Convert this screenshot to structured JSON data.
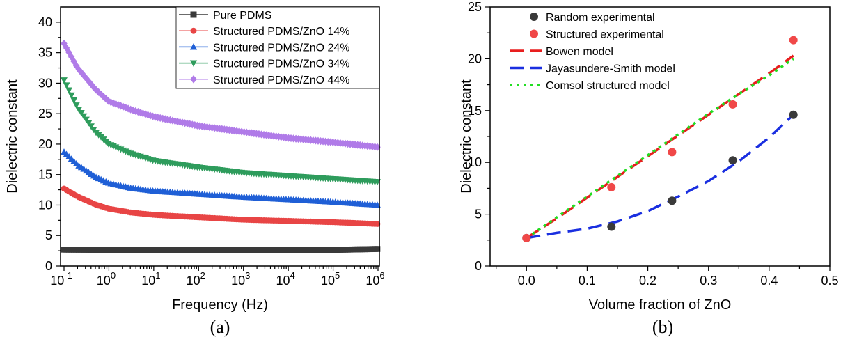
{
  "chart_data": [
    {
      "id": "a",
      "type": "line",
      "panel_label": "(a)",
      "xlabel": "Frequency (Hz)",
      "ylabel": "Dielectric constant",
      "xscale": "log",
      "xlim": [
        0.1,
        1000000
      ],
      "ylim": [
        0,
        42.5
      ],
      "xticks": [
        {
          "value": 0.1,
          "base": "10",
          "exp": "-1"
        },
        {
          "value": 1,
          "base": "10",
          "exp": "0"
        },
        {
          "value": 10,
          "base": "10",
          "exp": "1"
        },
        {
          "value": 100,
          "base": "10",
          "exp": "2"
        },
        {
          "value": 1000,
          "base": "10",
          "exp": "3"
        },
        {
          "value": 10000,
          "base": "10",
          "exp": "4"
        },
        {
          "value": 100000,
          "base": "10",
          "exp": "5"
        },
        {
          "value": 1000000,
          "base": "10",
          "exp": "6"
        }
      ],
      "yticks": [
        "0",
        "5",
        "10",
        "15",
        "20",
        "25",
        "30",
        "35",
        "40"
      ],
      "legend_position": "top-right",
      "series": [
        {
          "name": "Pure PDMS",
          "color": "#3a3a3a",
          "marker": "square",
          "x": [
            0.1,
            1,
            10,
            100,
            1000,
            10000,
            100000,
            1000000
          ],
          "y": [
            2.7,
            2.65,
            2.65,
            2.65,
            2.65,
            2.65,
            2.65,
            2.8
          ]
        },
        {
          "name": "Structured PDMS/ZnO 14%",
          "color": "#e84545",
          "marker": "circle",
          "x": [
            0.1,
            0.2,
            0.5,
            1,
            3,
            10,
            100,
            1000,
            10000,
            100000,
            1000000
          ],
          "y": [
            12.7,
            11.4,
            10.1,
            9.4,
            8.8,
            8.4,
            8.0,
            7.6,
            7.4,
            7.2,
            6.9
          ]
        },
        {
          "name": "Structured PDMS/ZnO 24%",
          "color": "#1f5fd6",
          "marker": "triangle-up",
          "x": [
            0.1,
            0.2,
            0.5,
            1,
            3,
            10,
            100,
            1000,
            10000,
            100000,
            1000000
          ],
          "y": [
            18.7,
            16.6,
            14.6,
            13.6,
            12.8,
            12.3,
            11.8,
            11.3,
            10.9,
            10.5,
            10.0
          ]
        },
        {
          "name": "Structured PDMS/ZnO 34%",
          "color": "#2e9c5c",
          "marker": "triangle-down",
          "x": [
            0.1,
            0.2,
            0.5,
            1,
            3,
            10,
            100,
            1000,
            10000,
            100000,
            1000000
          ],
          "y": [
            30.5,
            26.0,
            22.0,
            20.0,
            18.5,
            17.3,
            16.2,
            15.3,
            14.8,
            14.3,
            13.8
          ]
        },
        {
          "name": "Structured PDMS/ZnO 44%",
          "color": "#b07be8",
          "marker": "diamond",
          "x": [
            0.1,
            0.2,
            0.5,
            1,
            3,
            10,
            100,
            1000,
            10000,
            100000,
            1000000
          ],
          "y": [
            36.5,
            32.5,
            29.0,
            27.0,
            25.7,
            24.5,
            23.0,
            22.0,
            21.0,
            20.3,
            19.5
          ]
        }
      ]
    },
    {
      "id": "b",
      "type": "scatter",
      "panel_label": "(b)",
      "xlabel": "Volume fraction of ZnO",
      "ylabel": "Dielectric constant",
      "xlim": [
        -0.06,
        0.5
      ],
      "ylim": [
        0,
        25
      ],
      "xticks": [
        "0.0",
        "0.1",
        "0.2",
        "0.3",
        "0.4",
        "0.5"
      ],
      "yticks": [
        "0",
        "5",
        "10",
        "15",
        "20",
        "25"
      ],
      "legend_position": "top-left",
      "series": [
        {
          "name": "Random experimental",
          "color": "#3a3a3a",
          "style": "points",
          "x": [
            0,
            0.14,
            0.24,
            0.34,
            0.44
          ],
          "y": [
            2.7,
            3.8,
            6.3,
            10.2,
            14.6
          ]
        },
        {
          "name": "Structured experimental",
          "color": "#f04848",
          "style": "points",
          "x": [
            0,
            0.14,
            0.24,
            0.34,
            0.44
          ],
          "y": [
            2.7,
            7.6,
            11.0,
            15.6,
            21.8
          ]
        },
        {
          "name": "Bowen model",
          "color": "#e81e1e",
          "style": "dash",
          "x": [
            0,
            0.05,
            0.1,
            0.15,
            0.2,
            0.25,
            0.3,
            0.35,
            0.4,
            0.44
          ],
          "y": [
            2.7,
            4.6,
            6.6,
            8.6,
            10.6,
            12.6,
            14.6,
            16.6,
            18.6,
            20.3
          ]
        },
        {
          "name": "Jayasundere-Smith model",
          "color": "#1a2fe0",
          "style": "dash",
          "x": [
            0,
            0.05,
            0.1,
            0.15,
            0.2,
            0.25,
            0.3,
            0.35,
            0.4,
            0.44
          ],
          "y": [
            2.7,
            3.2,
            3.6,
            4.3,
            5.3,
            6.7,
            8.2,
            10.1,
            12.4,
            14.6
          ]
        },
        {
          "name": "Comsol structured model",
          "color": "#22dd22",
          "style": "dot",
          "x": [
            0,
            0.05,
            0.1,
            0.15,
            0.2,
            0.25,
            0.3,
            0.35,
            0.4,
            0.44
          ],
          "y": [
            2.7,
            4.7,
            6.7,
            8.7,
            10.7,
            12.7,
            14.7,
            16.6,
            18.4,
            20.0
          ]
        }
      ]
    }
  ]
}
